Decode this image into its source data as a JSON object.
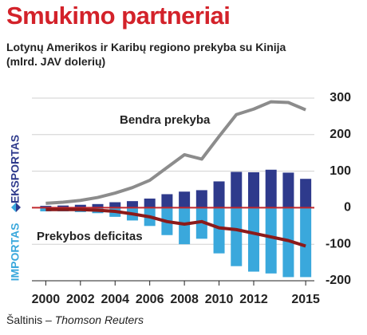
{
  "chart_data": {
    "type": "bar-line",
    "title": "Smukimo partneriai",
    "subtitle": "Lotynų Amerikos ir Karibų regiono prekyba su Kinija (mlrd. JAV dolerių)",
    "source_label": "Šaltinis –",
    "source_name": "Thomson Reuters",
    "x": [
      2000,
      2001,
      2002,
      2003,
      2004,
      2005,
      2006,
      2007,
      2008,
      2009,
      2010,
      2011,
      2012,
      2013,
      2014,
      2015
    ],
    "xlim": [
      1999.2,
      2015.5
    ],
    "xticks": [
      2000,
      2002,
      2004,
      2006,
      2008,
      2010,
      2012,
      2015
    ],
    "ylim": [
      -200,
      300
    ],
    "yticks": [
      -200,
      -100,
      0,
      100,
      200,
      300
    ],
    "grid": true,
    "zero_line_color": "#c0282d",
    "series": [
      {
        "name": "EKSPORTAS",
        "kind": "bar",
        "color": "#2e3a8c",
        "values": [
          5,
          6,
          8,
          10,
          15,
          18,
          25,
          37,
          44,
          48,
          72,
          98,
          97,
          104,
          96,
          79
        ]
      },
      {
        "name": "IMPORTAS",
        "kind": "bar",
        "color": "#3aa8dc",
        "values": [
          -10,
          -10,
          -12,
          -15,
          -25,
          -35,
          -50,
          -75,
          -100,
          -85,
          -125,
          -160,
          -175,
          -180,
          -190,
          -190
        ]
      },
      {
        "name": "Bendra prekyba",
        "kind": "line",
        "color": "#8c8c8c",
        "values": [
          12,
          15,
          20,
          28,
          40,
          55,
          75,
          110,
          145,
          133,
          195,
          255,
          270,
          290,
          288,
          268
        ]
      },
      {
        "name": "Prekybos deficitas",
        "kind": "line",
        "color": "#8b1a1a",
        "values": [
          -5,
          -5,
          -5,
          -7,
          -10,
          -17,
          -25,
          -38,
          -45,
          -38,
          -55,
          -60,
          -70,
          -80,
          -90,
          -105
        ]
      }
    ]
  }
}
